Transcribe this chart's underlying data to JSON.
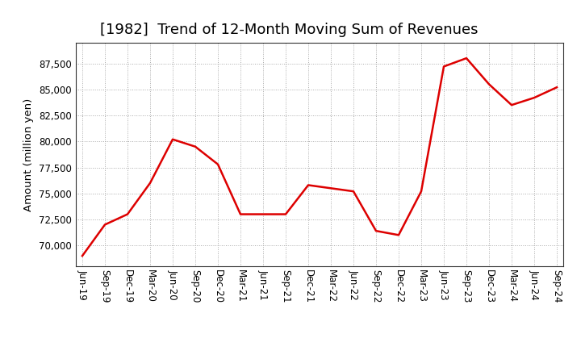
{
  "title": "[1982]  Trend of 12-Month Moving Sum of Revenues",
  "ylabel": "Amount (million yen)",
  "background_color": "#ffffff",
  "grid_color": "#aaaaaa",
  "line_color": "#dd0000",
  "x_labels": [
    "Jun-19",
    "Sep-19",
    "Dec-19",
    "Mar-20",
    "Jun-20",
    "Sep-20",
    "Dec-20",
    "Mar-21",
    "Jun-21",
    "Sep-21",
    "Dec-21",
    "Mar-22",
    "Jun-22",
    "Sep-22",
    "Dec-22",
    "Mar-23",
    "Jun-23",
    "Sep-23",
    "Dec-23",
    "Mar-24",
    "Jun-24",
    "Sep-24"
  ],
  "values": [
    69000,
    72000,
    73000,
    76000,
    80200,
    79500,
    77800,
    73000,
    73000,
    73000,
    75800,
    75500,
    75200,
    71400,
    71000,
    75200,
    87200,
    88000,
    85500,
    83500,
    84200,
    85200
  ],
  "ylim": [
    68000,
    89500
  ],
  "yticks": [
    70000,
    72500,
    75000,
    77500,
    80000,
    82500,
    85000,
    87500
  ],
  "title_fontsize": 13,
  "label_fontsize": 9.5,
  "tick_fontsize": 8.5,
  "line_width": 1.8
}
